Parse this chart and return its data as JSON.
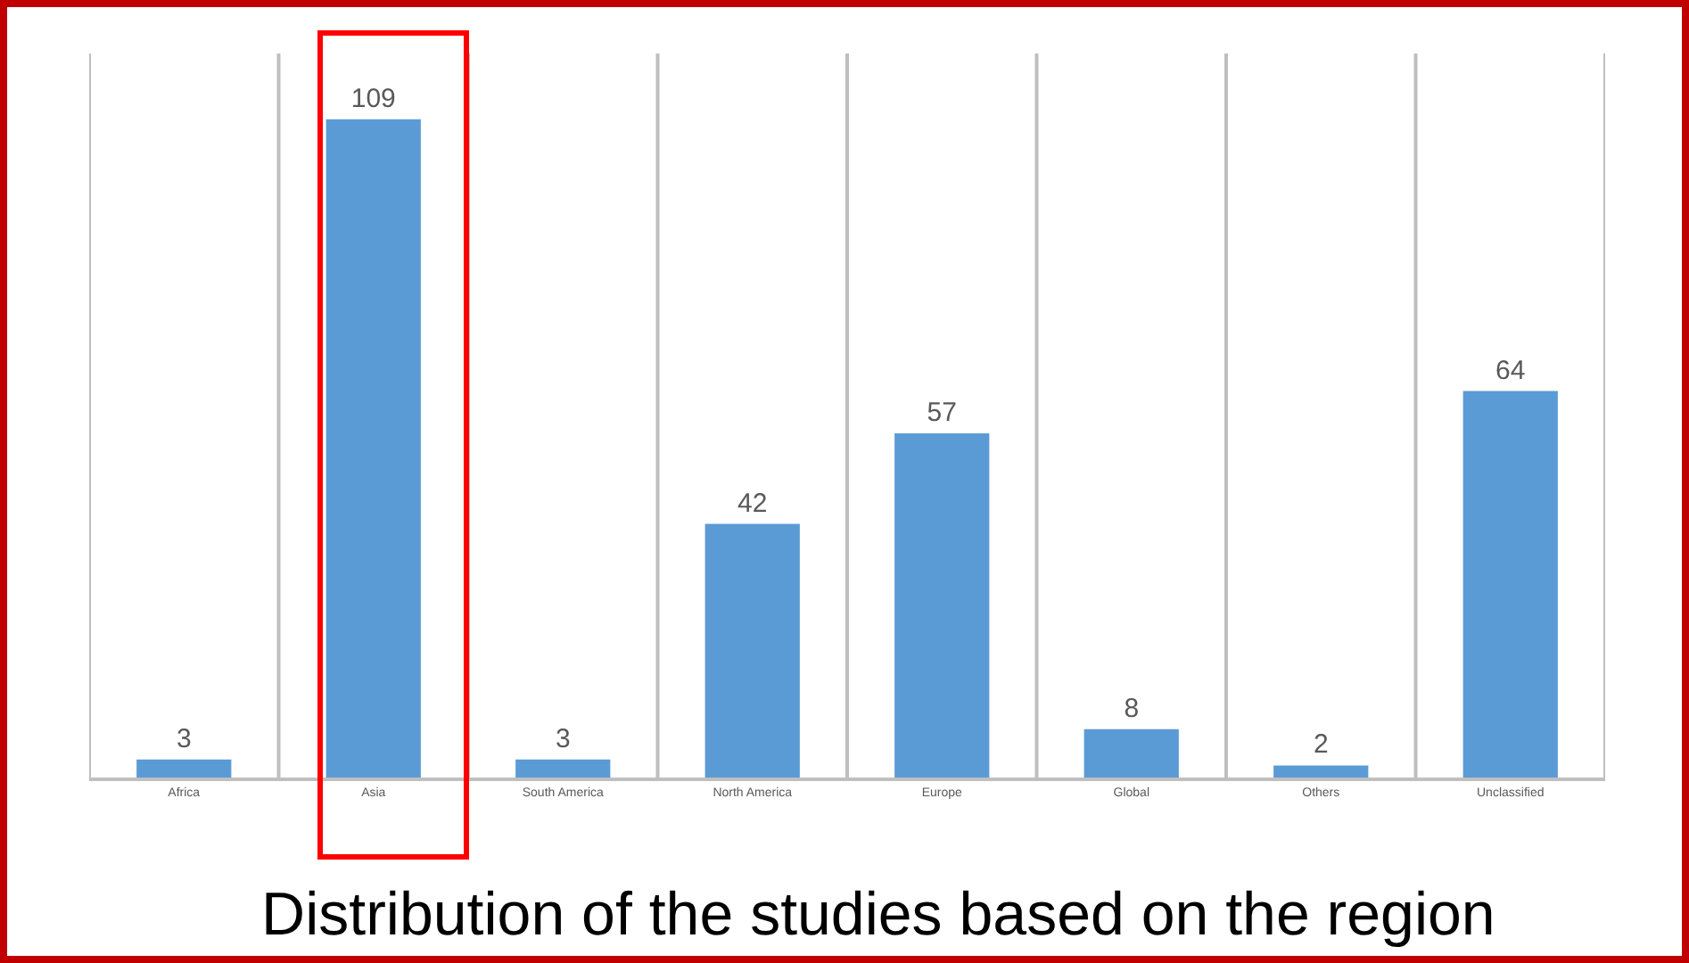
{
  "chart_data": {
    "type": "bar",
    "title": "Distribution of the studies based on the region",
    "categories": [
      "Africa",
      "Asia",
      "South America",
      "North America",
      "Europe",
      "Global",
      "Others",
      "Unclassified"
    ],
    "values": [
      3,
      109,
      3,
      42,
      57,
      8,
      2,
      64
    ],
    "color": "#5b9bd5",
    "data_labels": true,
    "grid": "x",
    "tick_labels": "x",
    "legend": false
  }
}
